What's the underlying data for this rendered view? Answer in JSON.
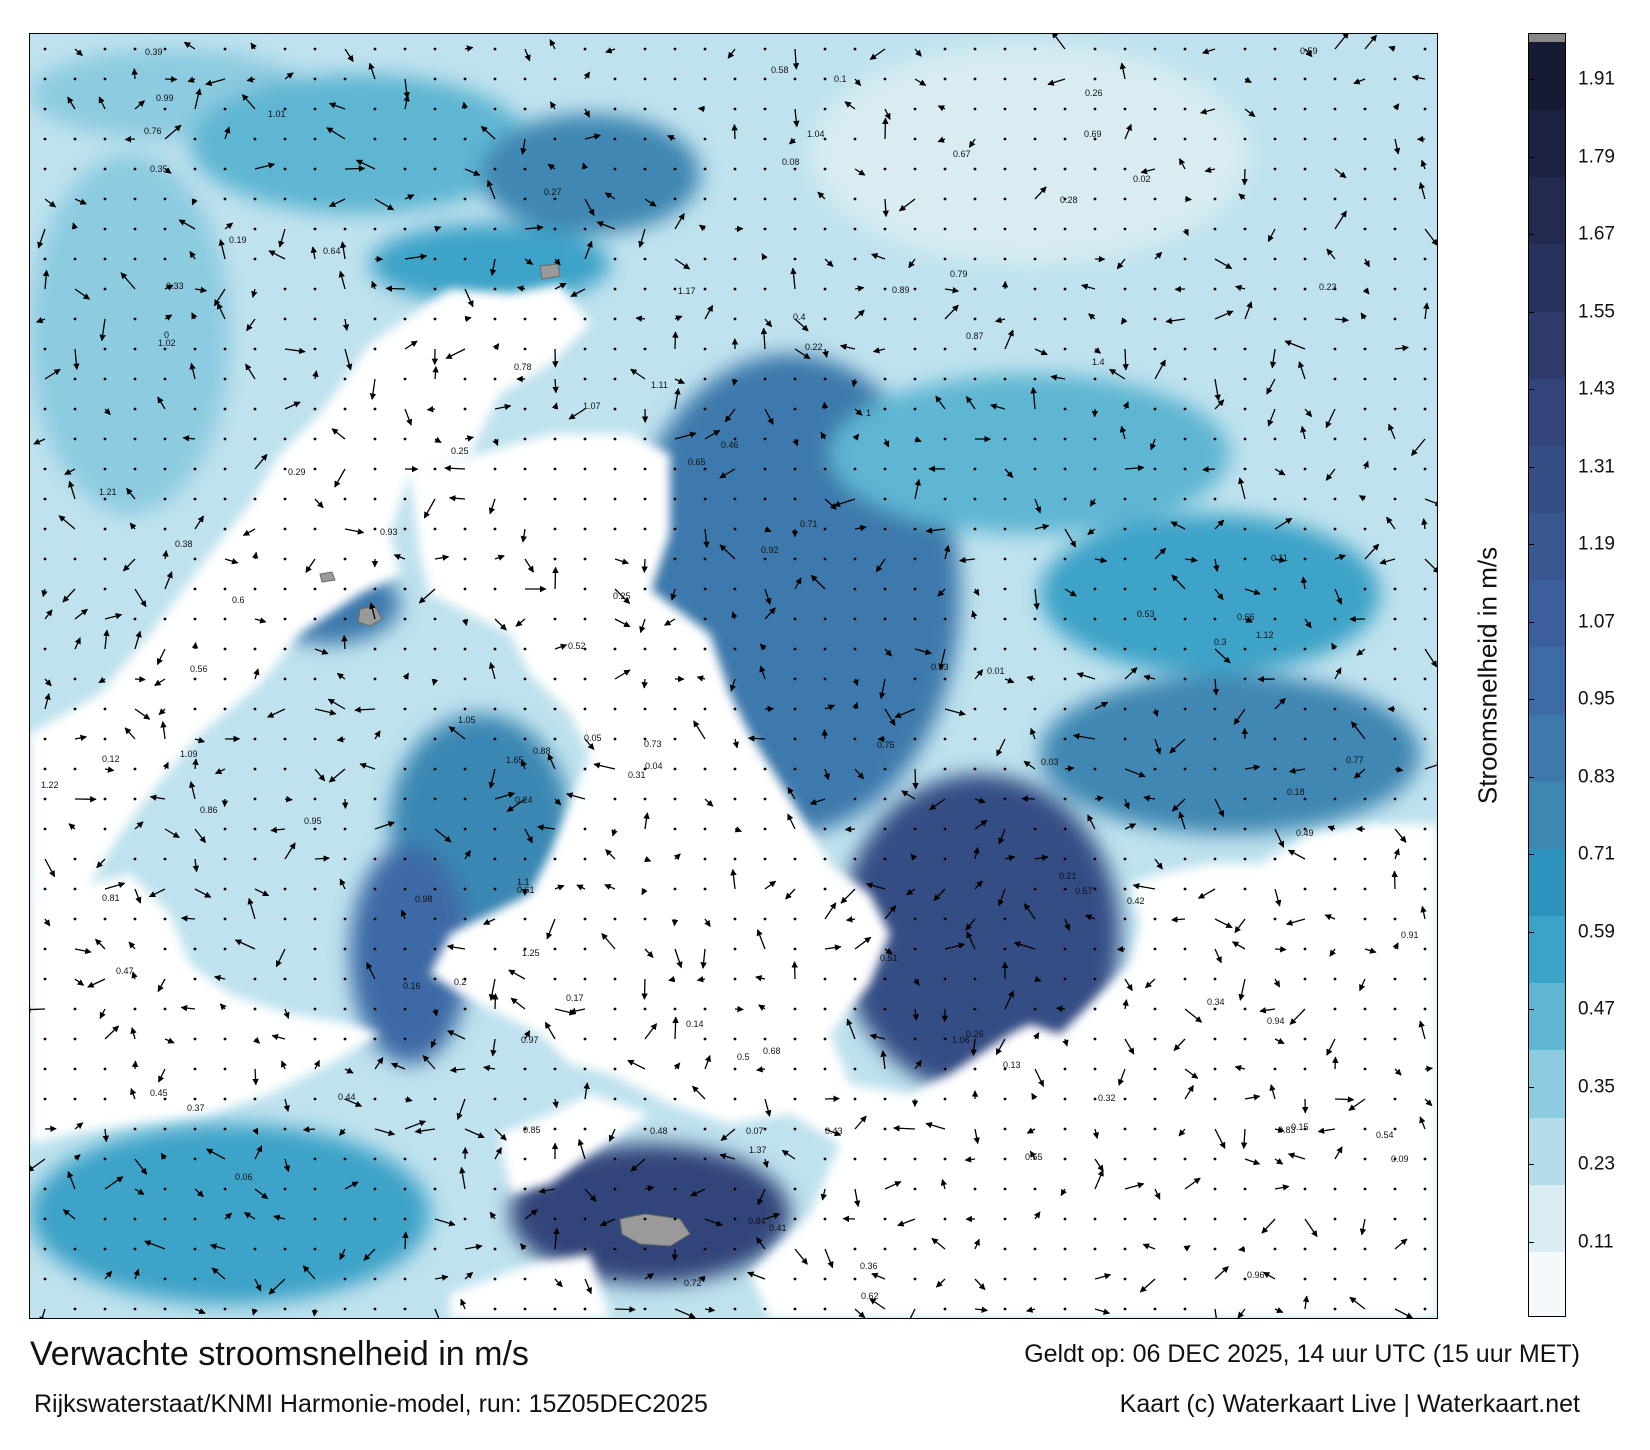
{
  "map": {
    "title": "Verwachte stroomsnelheid in m/s",
    "valid_time": "Geldt op: 06 DEC 2025, 14 uur UTC (15 uur MET)",
    "model_run": "Rijkswaterstaat/KNMI Harmonie-model, run: 15Z05DEC2025",
    "credit": "Kaart (c) Waterkaart Live | Waterkaart.net",
    "labels": [
      "0.16",
      "0.18",
      "0.15",
      "0.14",
      "0.25",
      "0.21",
      "0.22",
      "0.24",
      "0.26",
      "0.3",
      "0.17",
      "0.12",
      "0.13",
      "0.28",
      "0.29",
      "0.31",
      "0.26",
      "0.25",
      "0.27",
      "0.32",
      "0.33",
      "0.34",
      "0.37",
      "0.41",
      "0.44",
      "0.38",
      "0.39",
      "0.42",
      "0.45",
      "0.47",
      "0.49",
      "0.52",
      "0.53",
      "0.59",
      "0.61",
      "0.63",
      "0.19",
      "0.2",
      "0.23",
      "0.11",
      "0.1",
      "0.09",
      "0.08",
      "0.07",
      "0.06",
      "0.05",
      "0.04",
      "0.03",
      "0.02",
      "0.01",
      "0",
      "0.35",
      "0.36",
      "0.4",
      "0.43",
      "0.46",
      "0.48",
      "0.51",
      "0.55",
      "0.56",
      "0.58",
      "0.62",
      "0.66",
      "0.67",
      "0.72",
      "0.76",
      "0.78",
      "0.79",
      "0.81",
      "0.83",
      "0.84",
      "0.86",
      "0.87",
      "0.88",
      "0.89",
      "0.91",
      "0.92",
      "0.94",
      "0.95",
      "0.97",
      "0.98",
      "1",
      "1.01",
      "1.02",
      "1.04",
      "1.05",
      "1.06",
      "1.07",
      "1.09",
      "1.1",
      "1.11",
      "1.12",
      "1.17",
      "1.21",
      "1.22",
      "1.25",
      "1.37",
      "1.4",
      "1.65",
      "0.64",
      "0.68",
      "0.69",
      "0.73",
      "0.75",
      "0.77",
      "0.71",
      "0.85",
      "0.93",
      "0.96",
      "0.99",
      "0.54",
      "0.57",
      "0.6",
      "0.65",
      "0.5"
    ]
  },
  "colorbar": {
    "label": "Stroomsnelheid in m/s",
    "ticks": [
      "1.91",
      "1.79",
      "1.67",
      "1.55",
      "1.43",
      "1.31",
      "1.19",
      "1.07",
      "0.95",
      "0.83",
      "0.71",
      "0.59",
      "0.47",
      "0.35",
      "0.23",
      "0.11"
    ],
    "colors": [
      "#f4f9fb",
      "#d8ecf2",
      "#b3dbe8",
      "#8ccbe0",
      "#5fb6d3",
      "#3ca3c8",
      "#2e92be",
      "#3f87b3",
      "#3e79ac",
      "#3d6ba6",
      "#3b5f9d",
      "#3a5792",
      "#364d85",
      "#33447a",
      "#2d3a6a",
      "#27325d",
      "#222a50",
      "#1c2242",
      "#161a33"
    ],
    "top_color": "#888888"
  }
}
